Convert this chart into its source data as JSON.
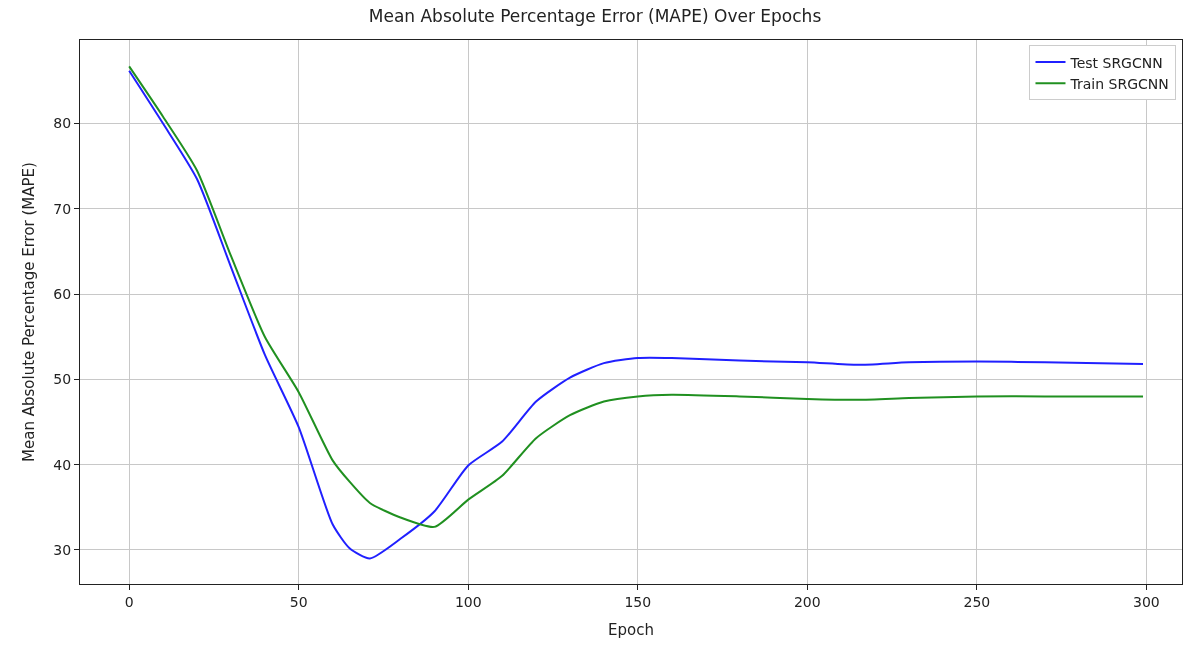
{
  "chart_data": {
    "type": "line",
    "title": "Mean Absolute Percentage Error (MAPE) Over Epochs",
    "xlabel": "Epoch",
    "ylabel": "Mean Absolute Percentage Error (MAPE)",
    "x": [
      0,
      10,
      20,
      30,
      40,
      50,
      60,
      65,
      71,
      80,
      90,
      100,
      110,
      120,
      130,
      140,
      150,
      160,
      180,
      200,
      215,
      230,
      250,
      270,
      299
    ],
    "series": [
      {
        "name": "Test SRGCNN",
        "color": "#2020ff",
        "values": [
          86.2,
          80.0,
          73.5,
          63.2,
          52.9,
          44.4,
          33.0,
          30.2,
          29.0,
          31.3,
          34.5,
          39.9,
          42.7,
          47.4,
          50.2,
          51.9,
          52.5,
          52.5,
          52.2,
          52.0,
          51.7,
          52.0,
          52.1,
          52.0,
          51.8
        ]
      },
      {
        "name": "Train SRGCNN",
        "color": "#209020",
        "values": [
          86.7,
          80.8,
          74.5,
          64.5,
          55.0,
          48.5,
          40.5,
          38.0,
          35.5,
          33.8,
          32.7,
          35.9,
          38.7,
          43.1,
          45.8,
          47.4,
          48.0,
          48.2,
          48.0,
          47.7,
          47.6,
          47.8,
          48.0,
          48.0,
          48.0
        ]
      }
    ],
    "xlim": [
      -14.5,
      310.5
    ],
    "ylim": [
      26,
      89.8
    ],
    "xticks": [
      0,
      50,
      100,
      150,
      200,
      250,
      300
    ],
    "yticks": [
      30,
      40,
      50,
      60,
      70,
      80
    ],
    "grid": true,
    "legend": "top right",
    "marker": "none",
    "line_style": "solid"
  }
}
